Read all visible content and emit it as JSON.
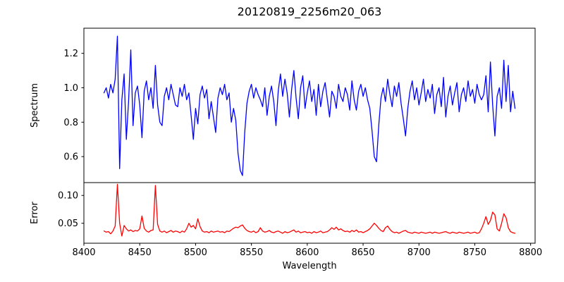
{
  "figure": {
    "background": "#ffffff",
    "text_color": "#000000",
    "spine_color": "#000000"
  },
  "chart_data": [
    {
      "type": "line",
      "panel": "spectrum",
      "title": "20120819_2256m20_063",
      "ylabel": "Spectrum",
      "xlabel": "",
      "color": "#0000ff",
      "grid": false,
      "legend": null,
      "xlim": [
        8400,
        8804
      ],
      "ylim": [
        0.449,
        1.346
      ],
      "xticks": {
        "values": [
          8400,
          8450,
          8500,
          8550,
          8600,
          8650,
          8700,
          8750,
          8800
        ],
        "labels": [
          "8400",
          "8450",
          "8500",
          "8550",
          "8600",
          "8650",
          "8700",
          "8750",
          "8800"
        ],
        "show_labels": false
      },
      "yticks": {
        "values": [
          0.6,
          0.8,
          1.0,
          1.2
        ],
        "labels": [
          "0.6",
          "0.8",
          "1.0",
          "1.2"
        ]
      },
      "x_start": 8418,
      "x_step": 2,
      "values": [
        0.97,
        1.0,
        0.94,
        1.02,
        0.97,
        1.05,
        1.3,
        0.53,
        0.93,
        1.08,
        0.7,
        0.92,
        1.22,
        0.78,
        0.97,
        1.01,
        0.9,
        0.71,
        0.98,
        1.04,
        0.93,
        1.0,
        0.88,
        1.13,
        0.9,
        0.8,
        0.78,
        0.95,
        1.0,
        0.93,
        1.02,
        0.96,
        0.9,
        0.89,
        1.0,
        0.95,
        1.02,
        0.93,
        0.97,
        0.84,
        0.7,
        0.88,
        0.79,
        0.96,
        1.01,
        0.94,
        0.99,
        0.82,
        0.92,
        0.83,
        0.74,
        0.94,
        1.0,
        0.96,
        1.02,
        0.93,
        0.97,
        0.8,
        0.88,
        0.81,
        0.62,
        0.52,
        0.49,
        0.74,
        0.91,
        0.98,
        1.02,
        0.94,
        1.0,
        0.96,
        0.93,
        0.89,
        1.0,
        0.84,
        0.95,
        1.01,
        0.92,
        0.78,
        0.98,
        1.08,
        0.95,
        1.05,
        0.97,
        0.83,
        0.99,
        1.1,
        0.94,
        0.82,
        1.0,
        1.07,
        0.88,
        0.97,
        1.04,
        0.92,
        0.99,
        0.84,
        1.02,
        0.89,
        0.98,
        1.03,
        0.93,
        0.83,
        0.98,
        0.95,
        0.88,
        1.02,
        0.95,
        0.92,
        1.0,
        0.96,
        0.87,
        1.04,
        0.93,
        0.87,
        0.98,
        1.02,
        0.95,
        1.0,
        0.93,
        0.88,
        0.75,
        0.6,
        0.57,
        0.78,
        0.94,
        1.0,
        0.92,
        1.05,
        0.96,
        0.89,
        1.01,
        0.95,
        1.03,
        0.91,
        0.82,
        0.72,
        0.88,
        0.98,
        1.04,
        0.93,
        1.0,
        0.9,
        0.97,
        1.05,
        0.92,
        0.99,
        0.94,
        1.02,
        0.85,
        0.96,
        1.0,
        0.89,
        1.06,
        0.83,
        0.95,
        1.01,
        0.9,
        0.97,
        1.03,
        0.86,
        0.96,
        1.0,
        0.92,
        1.04,
        0.95,
        0.99,
        0.91,
        1.02,
        0.96,
        0.93,
        0.96,
        1.07,
        0.86,
        1.15,
        0.9,
        0.72,
        0.95,
        1.0,
        0.88,
        1.16,
        0.92,
        1.13,
        0.86,
        0.98,
        0.88
      ]
    },
    {
      "type": "line",
      "panel": "error",
      "title": "",
      "ylabel": "Error",
      "xlabel": "Wavelength",
      "color": "#ff0000",
      "grid": false,
      "legend": null,
      "xlim": [
        8400,
        8804
      ],
      "ylim": [
        0.0141,
        0.1231
      ],
      "xticks": {
        "values": [
          8400,
          8450,
          8500,
          8550,
          8600,
          8650,
          8700,
          8750,
          8800
        ],
        "labels": [
          "8400",
          "8450",
          "8500",
          "8550",
          "8600",
          "8650",
          "8700",
          "8750",
          "8800"
        ],
        "show_labels": true
      },
      "yticks": {
        "values": [
          0.05,
          0.1
        ],
        "labels": [
          "0.05",
          "0.10"
        ]
      },
      "x_start": 8418,
      "x_step": 2,
      "values": [
        0.036,
        0.034,
        0.035,
        0.031,
        0.036,
        0.045,
        0.12,
        0.05,
        0.027,
        0.046,
        0.04,
        0.036,
        0.038,
        0.035,
        0.037,
        0.036,
        0.04,
        0.063,
        0.041,
        0.036,
        0.034,
        0.037,
        0.038,
        0.118,
        0.048,
        0.036,
        0.034,
        0.036,
        0.033,
        0.035,
        0.037,
        0.034,
        0.036,
        0.035,
        0.033,
        0.036,
        0.034,
        0.04,
        0.05,
        0.043,
        0.046,
        0.04,
        0.058,
        0.044,
        0.036,
        0.034,
        0.035,
        0.033,
        0.036,
        0.034,
        0.035,
        0.036,
        0.034,
        0.035,
        0.033,
        0.036,
        0.035,
        0.038,
        0.041,
        0.043,
        0.042,
        0.045,
        0.047,
        0.041,
        0.037,
        0.035,
        0.034,
        0.036,
        0.033,
        0.035,
        0.042,
        0.036,
        0.034,
        0.035,
        0.037,
        0.034,
        0.033,
        0.035,
        0.036,
        0.034,
        0.032,
        0.035,
        0.033,
        0.034,
        0.036,
        0.038,
        0.034,
        0.036,
        0.033,
        0.034,
        0.035,
        0.033,
        0.034,
        0.032,
        0.035,
        0.033,
        0.034,
        0.036,
        0.033,
        0.034,
        0.035,
        0.038,
        0.042,
        0.039,
        0.043,
        0.038,
        0.04,
        0.037,
        0.035,
        0.036,
        0.034,
        0.037,
        0.035,
        0.038,
        0.034,
        0.035,
        0.033,
        0.035,
        0.037,
        0.04,
        0.045,
        0.05,
        0.046,
        0.041,
        0.037,
        0.035,
        0.042,
        0.045,
        0.039,
        0.035,
        0.033,
        0.034,
        0.032,
        0.034,
        0.036,
        0.037,
        0.034,
        0.033,
        0.032,
        0.034,
        0.033,
        0.032,
        0.034,
        0.033,
        0.032,
        0.033,
        0.034,
        0.032,
        0.034,
        0.033,
        0.032,
        0.033,
        0.034,
        0.035,
        0.033,
        0.032,
        0.034,
        0.033,
        0.032,
        0.034,
        0.033,
        0.032,
        0.033,
        0.034,
        0.032,
        0.033,
        0.034,
        0.032,
        0.033,
        0.04,
        0.05,
        0.062,
        0.048,
        0.055,
        0.07,
        0.065,
        0.04,
        0.036,
        0.05,
        0.067,
        0.06,
        0.042,
        0.035,
        0.033,
        0.032
      ]
    }
  ]
}
